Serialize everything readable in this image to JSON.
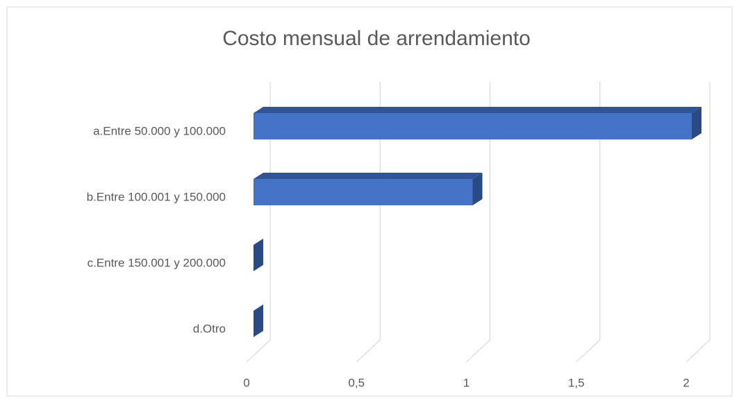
{
  "chart_data": {
    "type": "bar3d_horizontal",
    "title": "Costo mensual de arrendamiento",
    "categories": [
      "a.Entre 50.000 y 100.000",
      "b.Entre 100.001 y 150.000",
      "c.Entre 150.001 y 200.000",
      "d.Otro"
    ],
    "values": [
      2,
      1,
      0,
      0
    ],
    "color": "#4472c4",
    "xlim": [
      0,
      2
    ],
    "xticks": [
      0,
      {
        "value": 0.5,
        "label": "0,5"
      },
      1,
      {
        "value": 1.5,
        "label": "1,5"
      },
      2
    ],
    "grid": true
  }
}
